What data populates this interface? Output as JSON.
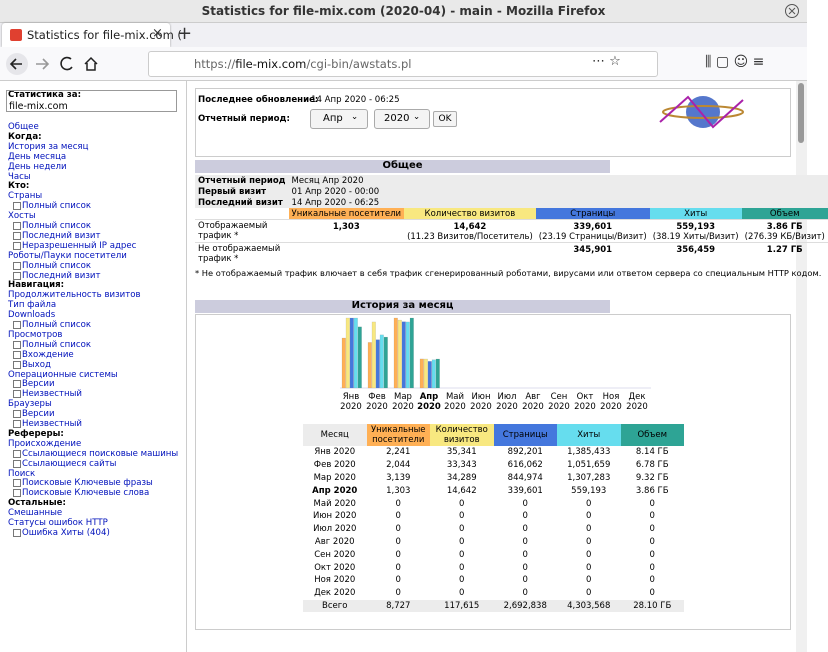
{
  "window": {
    "title": "Statistics for file-mix.com (2020-04) - main - Mozilla Firefox"
  },
  "tab": {
    "title": "Statistics for file-mix.com ("
  },
  "url": {
    "scheme": "https://",
    "host": "file-mix.com",
    "path": "/cgi-bin/awstats.pl"
  },
  "sidebar": {
    "stats_label": "Статистика за:",
    "site": "file-mix.com",
    "overview": "Общее",
    "sections": [
      {
        "heading": "Когда:",
        "items": [
          {
            "label": "История за месяц"
          },
          {
            "label": "День месяца"
          },
          {
            "label": "День недели"
          },
          {
            "label": "Часы"
          }
        ]
      },
      {
        "heading": "Кто:",
        "items": [
          {
            "label": "Страны",
            "sub": [
              "Полный список"
            ]
          },
          {
            "label": "Хосты",
            "sub": [
              "Полный список",
              "Последний визит",
              "Неразрешенный IP адрес"
            ]
          },
          {
            "label": "Роботы/Пауки посетители",
            "sub": [
              "Полный список",
              "Последний визит"
            ]
          }
        ]
      },
      {
        "heading": "Навигация:",
        "items": [
          {
            "label": "Продолжительность визитов"
          },
          {
            "label": "Тип файла"
          },
          {
            "label": "Downloads",
            "sub": [
              "Полный список"
            ]
          },
          {
            "label": "Просмотров",
            "sub": [
              "Полный список",
              "Вхождение",
              "Выход"
            ]
          },
          {
            "label": "Операционные системы",
            "sub": [
              "Версии",
              "Неизвестный"
            ]
          },
          {
            "label": "Браузеры",
            "sub": [
              "Версии",
              "Неизвестный"
            ]
          }
        ]
      },
      {
        "heading": "Рефереры:",
        "items": [
          {
            "label": "Происхождение",
            "sub": [
              "Ссылающиеся поисковые машины",
              "Ссылающиеся сайты"
            ]
          },
          {
            "label": "Поиск",
            "sub": [
              "Поисковые Ключевые фразы",
              "Поисковые Ключевые слова"
            ]
          }
        ]
      },
      {
        "heading": "Остальные:",
        "items": [
          {
            "label": "Смешанные"
          },
          {
            "label": "Статусы ошибок HTTP",
            "sub": [
              "Ошибка Хиты (404)"
            ]
          }
        ]
      }
    ]
  },
  "header": {
    "updated_label": "Последнее обновление:",
    "updated": "14 Апр 2020 - 06:25",
    "period_label": "Отчетный период:",
    "month": "Апр",
    "year": "2020",
    "ok": "OK"
  },
  "metrics": [
    {
      "name": "Уникальные посетители",
      "color": "#ffb055"
    },
    {
      "name": "Количество визитов",
      "color": "#f8e880"
    },
    {
      "name": "Страницы",
      "color": "#4477dd"
    },
    {
      "name": "Хиты",
      "color": "#66ddee"
    },
    {
      "name": "Объем",
      "color": "#2ea495"
    }
  ],
  "summary": {
    "title": "Общее",
    "rows": [
      [
        "Отчетный период",
        "Месяц Апр 2020"
      ],
      [
        "Первый визит",
        "01 Апр 2020 - 00:00"
      ],
      [
        "Последний визит",
        "14 Апр 2020 - 06:25"
      ]
    ],
    "traffic": [
      {
        "label": "Отображаемый трафик *",
        "values": [
          {
            "value": 1303,
            "label": "1,303"
          },
          {
            "value": 14642,
            "label": "14,642"
          },
          {
            "value": 339601,
            "label": "339,601"
          },
          {
            "value": 559193,
            "label": "559,193"
          },
          {
            "value": 3.86,
            "label": "3.86 ГБ"
          }
        ],
        "notes": [
          null,
          "(11.23 Визитов/Посетитель)",
          "(23.19 Страницы/Визит)",
          "(38.19 Хиты/Визит)",
          "(276.39 КБ/Визит)"
        ]
      },
      {
        "label": "Не отображаемый трафик *",
        "values": [
          null,
          null,
          {
            "value": 345901,
            "label": "345,901"
          },
          {
            "value": 356459,
            "label": "356,459"
          },
          {
            "value": 1.27,
            "label": "1.27 ГБ"
          }
        ]
      }
    ],
    "footnote": "* Не отображаемый трафик влючает в себя трафик сгенерированный роботами, вирусами или ответом сервера со специальным HTTP кодом."
  },
  "history": {
    "title": "История за месяц",
    "month_header": "Месяц",
    "year": "2020",
    "current": 3,
    "months": [
      "Янв",
      "Фев",
      "Мар",
      "Апр",
      "Май",
      "Июн",
      "Июл",
      "Авг",
      "Сен",
      "Окт",
      "Ноя",
      "Дек"
    ],
    "series": [
      [
        {
          "value": 2241,
          "label": "2,241"
        },
        {
          "value": 2044,
          "label": "2,044"
        },
        {
          "value": 3139,
          "label": "3,139"
        },
        {
          "value": 1303,
          "label": "1,303"
        },
        0,
        0,
        0,
        0,
        0,
        0,
        0,
        0
      ],
      [
        {
          "value": 35341,
          "label": "35,341"
        },
        {
          "value": 33343,
          "label": "33,343"
        },
        {
          "value": 34289,
          "label": "34,289"
        },
        {
          "value": 14642,
          "label": "14,642"
        },
        0,
        0,
        0,
        0,
        0,
        0,
        0,
        0
      ],
      [
        {
          "value": 892201,
          "label": "892,201"
        },
        {
          "value": 616062,
          "label": "616,062"
        },
        {
          "value": 844974,
          "label": "844,974"
        },
        {
          "value": 339601,
          "label": "339,601"
        },
        0,
        0,
        0,
        0,
        0,
        0,
        0,
        0
      ],
      [
        {
          "value": 1385433,
          "label": "1,385,433"
        },
        {
          "value": 1051659,
          "label": "1,051,659"
        },
        {
          "value": 1307283,
          "label": "1,307,283"
        },
        {
          "value": 559193,
          "label": "559,193"
        },
        0,
        0,
        0,
        0,
        0,
        0,
        0,
        0
      ],
      [
        {
          "value": 8.14,
          "label": "8.14 ГБ"
        },
        {
          "value": 6.78,
          "label": "6.78 ГБ"
        },
        {
          "value": 9.32,
          "label": "9.32 ГБ"
        },
        {
          "value": 3.86,
          "label": "3.86 ГБ"
        },
        0,
        0,
        0,
        0,
        0,
        0,
        0,
        0
      ]
    ],
    "total_label": "Всего",
    "totals": [
      {
        "value": 8727,
        "label": "8,727"
      },
      {
        "value": 117615,
        "label": "117,615"
      },
      {
        "value": 2692838,
        "label": "2,692,838"
      },
      {
        "value": 4303568,
        "label": "4,303,568"
      },
      {
        "value": 28.1,
        "label": "28.10 ГБ"
      }
    ]
  }
}
